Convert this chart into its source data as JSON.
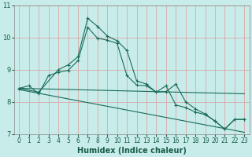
{
  "xlabel": "Humidex (Indice chaleur)",
  "xlim": [
    -0.5,
    23.5
  ],
  "ylim": [
    7,
    11
  ],
  "yticks": [
    7,
    8,
    9,
    10,
    11
  ],
  "xticks": [
    0,
    1,
    2,
    3,
    4,
    5,
    6,
    7,
    8,
    9,
    10,
    11,
    12,
    13,
    14,
    15,
    16,
    17,
    18,
    19,
    20,
    21,
    22,
    23
  ],
  "bg_color": "#c8ecea",
  "grid_color": "#d8a8a8",
  "line_color": "#1a6b5a",
  "line1_x": [
    0,
    1,
    2,
    3,
    4,
    5,
    6,
    7,
    8,
    9,
    10,
    11,
    12,
    13,
    14,
    15,
    16,
    17,
    18,
    19,
    20,
    21,
    22,
    23
  ],
  "line1_y": [
    8.42,
    8.5,
    8.25,
    8.82,
    8.92,
    8.98,
    9.28,
    10.32,
    9.98,
    9.92,
    9.82,
    8.82,
    8.52,
    8.5,
    8.3,
    8.5,
    7.9,
    7.82,
    7.68,
    7.6,
    7.4,
    7.15,
    7.45,
    7.45
  ],
  "line2_x": [
    0,
    2,
    4,
    5,
    6,
    7,
    8,
    9,
    10,
    11,
    12,
    13,
    14,
    15,
    16,
    17,
    18,
    19,
    20,
    21,
    22,
    23
  ],
  "line2_y": [
    8.42,
    8.3,
    9.0,
    9.15,
    9.4,
    10.6,
    10.35,
    10.05,
    9.9,
    9.6,
    8.65,
    8.55,
    8.3,
    8.32,
    8.55,
    8.0,
    7.78,
    7.62,
    7.4,
    7.15,
    7.45,
    7.45
  ],
  "trend1_x": [
    0,
    23
  ],
  "trend1_y": [
    8.42,
    8.25
  ],
  "trend2_x": [
    0,
    23
  ],
  "trend2_y": [
    8.38,
    7.05
  ],
  "xlabel_color": "#1a5c4a",
  "xlabel_fontsize": 7,
  "tick_fontsize": 5.5,
  "tick_color": "#1a5c4a"
}
